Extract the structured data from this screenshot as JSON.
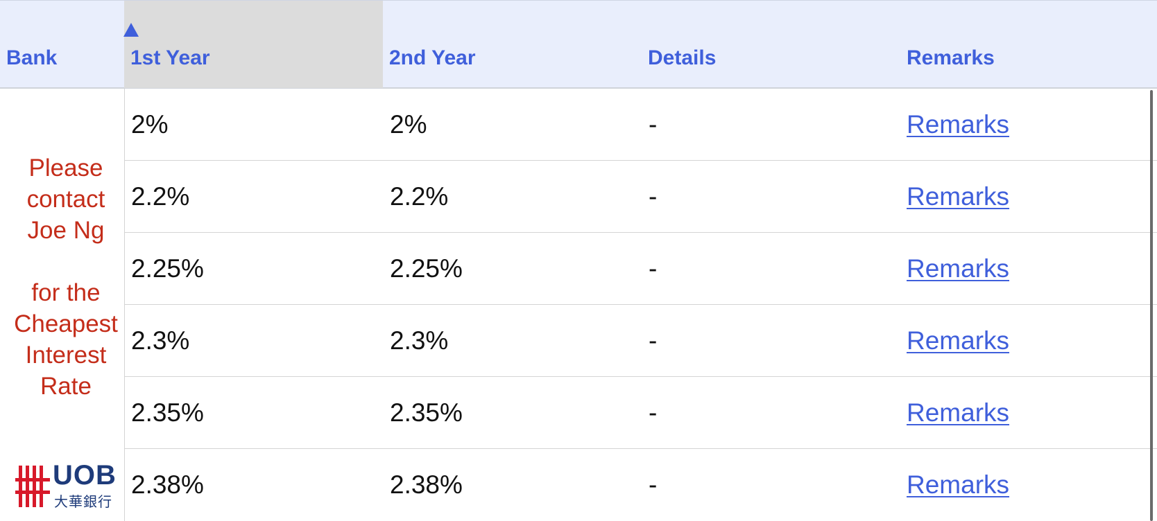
{
  "columns": {
    "bank": "Bank",
    "first_year": "1st Year",
    "second_year": "2nd Year",
    "details": "Details",
    "remarks": "Remarks"
  },
  "sort": {
    "column": "1st Year",
    "direction": "ascending",
    "icon": "sort-up-triangle-icon"
  },
  "rows": [
    {
      "first_year": "2%",
      "second_year": "2%",
      "details": "-",
      "remarks": "Remarks"
    },
    {
      "first_year": "2.2%",
      "second_year": "2.2%",
      "details": "-",
      "remarks": "Remarks"
    },
    {
      "first_year": "2.25%",
      "second_year": "2.25%",
      "details": "-",
      "remarks": "Remarks"
    },
    {
      "first_year": "2.3%",
      "second_year": "2.3%",
      "details": "-",
      "remarks": "Remarks"
    },
    {
      "first_year": "2.35%",
      "second_year": "2.35%",
      "details": "-",
      "remarks": "Remarks"
    },
    {
      "first_year": "2.38%",
      "second_year": "2.38%",
      "details": "-",
      "remarks": "Remarks"
    }
  ],
  "promo": {
    "text": "Please\ncontact\nJoe Ng\n\nfor the\nCheapest\nInterest\nRate",
    "color": "#c42d1a"
  },
  "uob_logo": {
    "name": "UOB",
    "subtitle": "大華銀行",
    "bar_color": "#d7192a",
    "text_color": "#1e3b7a"
  },
  "colors": {
    "header_bg": "#e9eefc",
    "header_text": "#3f5fdb",
    "sorted_header_bg": "#dcdcdc",
    "link": "#3f5fdb"
  }
}
